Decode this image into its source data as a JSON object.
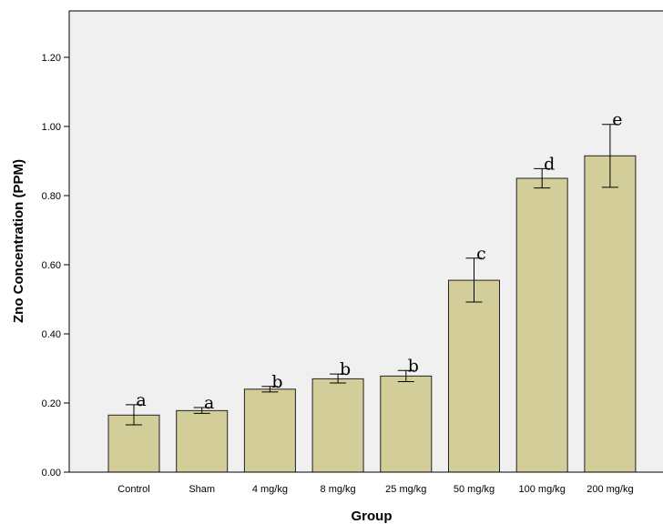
{
  "chart_data": {
    "type": "bar",
    "title": "",
    "xlabel": "Group",
    "ylabel": "Zno Concentration (PPM)",
    "ylim": [
      0,
      1.34
    ],
    "yticks": [
      "0.00",
      "0.20",
      "0.40",
      "0.60",
      "0.80",
      "1.00",
      "1.20"
    ],
    "grid": false,
    "categories": [
      "Control",
      "Sham",
      "4 mg/kg",
      "8 mg/kg",
      "25 mg/kg",
      "50 mg/kg",
      "100 mg/kg",
      "200 mg/kg"
    ],
    "values": [
      0.165,
      0.178,
      0.24,
      0.27,
      0.278,
      0.555,
      0.85,
      0.915
    ],
    "error_low": [
      0.137,
      0.17,
      0.232,
      0.258,
      0.262,
      0.492,
      0.822,
      0.824
    ],
    "error_high": [
      0.195,
      0.187,
      0.248,
      0.284,
      0.294,
      0.619,
      0.878,
      1.006
    ],
    "significance_letters": [
      "a",
      "a",
      "b",
      "b",
      "b",
      "c",
      "d",
      "e"
    ],
    "colors": {
      "bar_fill": "#d3ce99",
      "bar_stroke": "#222222",
      "plot_background": "#f0f0f0",
      "axis": "#000000"
    }
  }
}
